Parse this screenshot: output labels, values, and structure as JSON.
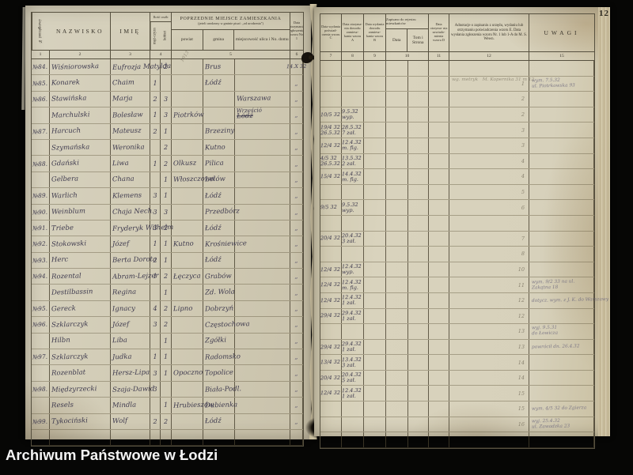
{
  "page_number": "12",
  "archive_label": "Archiwum Państwowe w Łodzi",
  "colors": {
    "paper": "#d4ceb8",
    "ink": "#3e3a4e",
    "pencil": "#837c6a",
    "table_line": "#56503f",
    "background": "#060605"
  },
  "left_table": {
    "headers": {
      "nr": "№ porządkowy",
      "nazwisko": "NAZWISKO",
      "imie": "IMIĘ",
      "ilosc": "Ilość osób",
      "mezczyzn": "męż-czyzn",
      "kobiet": "kobiet",
      "poprzednie_title": "POPRZEDNIE MIEJSCE ZAMIESZKANIA",
      "poprzednie_sub": "(jeżeli urodzony w gminie pisać: „od urodzenia”)",
      "powiat": "powiat",
      "gmina": "gmina",
      "miejscowosc": "miejscowość ulica i No. domu",
      "data_otrzymania": "Data otrzymania zgłoszenia wzoru No. 1",
      "numbers": [
        "1",
        "2",
        "3",
        "4",
        "5",
        "6"
      ]
    },
    "header_pencil": "1913",
    "rows": [
      {
        "no": "№84.",
        "naz": "Wiśniorowska",
        "im": "Eufrozja Matylda",
        "m": "",
        "k": "2",
        "pow": "",
        "gm": "Brus",
        "mj": "",
        "mj2": "",
        "strike": false,
        "dt": "14.X 32"
      },
      {
        "no": "№85.",
        "naz": "Konarek",
        "im": "Chaim",
        "m": "1",
        "k": "",
        "pow": "",
        "gm": "Łódź",
        "mj": "",
        "mj2": "",
        "strike": false,
        "dt": "„"
      },
      {
        "no": "№86.",
        "naz": "Stawińska",
        "im": "Marja",
        "m": "2",
        "k": "3",
        "pow": "",
        "gm": "",
        "mj": "Warszawa",
        "mj2": "",
        "strike": false,
        "dt": "„"
      },
      {
        "no": "",
        "naz": "Marchulski",
        "im": "Bolesław",
        "m": "1",
        "k": "3",
        "pow": "Piotrków",
        "gm": "",
        "mj": "Łódź",
        "mj2": "Wrześció",
        "strike": true,
        "dt": "„"
      },
      {
        "no": "№87.",
        "naz": "Harcuch",
        "im": "Mateusz",
        "m": "2",
        "k": "1",
        "pow": "",
        "gm": "Brzeziny",
        "mj": "",
        "mj2": "",
        "strike": false,
        "dt": "„"
      },
      {
        "no": "",
        "naz": "Szymańska",
        "im": "Weronika",
        "m": "",
        "k": "2",
        "pow": "",
        "gm": "Kutno",
        "mj": "",
        "mj2": "",
        "strike": false,
        "dt": "„"
      },
      {
        "no": "№88.",
        "naz": "Gdański",
        "im": "Liwa",
        "m": "1",
        "k": "2",
        "pow": "Olkusz",
        "gm": "Pilica",
        "mj": "",
        "mj2": "",
        "strike": false,
        "dt": "„"
      },
      {
        "no": "",
        "naz": "Gelbera",
        "im": "Chana",
        "m": "",
        "k": "1",
        "pow": "Włoszczowa",
        "gm": "Lelów",
        "mj": "",
        "mj2": "",
        "strike": false,
        "dt": "„"
      },
      {
        "no": "№89.",
        "naz": "Warlich",
        "im": "Klemens",
        "m": "3",
        "k": "1",
        "pow": "",
        "gm": "Łódź",
        "mj": "",
        "mj2": "",
        "strike": false,
        "dt": "„"
      },
      {
        "no": "№90.",
        "naz": "Weinblum",
        "im": "Chaja Nech.",
        "m": "3",
        "k": "3",
        "pow": "",
        "gm": "Przedbórz",
        "mj": "",
        "mj2": "",
        "strike": false,
        "dt": "„"
      },
      {
        "no": "№91.",
        "naz": "Triebe",
        "im": "Fryderyk Wilhelm",
        "m": "3",
        "k": "2",
        "pow": "",
        "gm": "Łódź",
        "mj": "",
        "mj2": "",
        "strike": false,
        "dt": "„"
      },
      {
        "no": "№92.",
        "naz": "Stokowski",
        "im": "Józef",
        "m": "1",
        "k": "1",
        "pow": "Kutno",
        "gm": "Krośniewice",
        "mj": "",
        "mj2": "",
        "strike": false,
        "dt": "„"
      },
      {
        "no": "№93.",
        "naz": "Herc",
        "im": "Berta Dorota",
        "m": "2",
        "k": "1",
        "pow": "",
        "gm": "Łódź",
        "mj": "",
        "mj2": "",
        "strike": false,
        "dt": "„"
      },
      {
        "no": "№94.",
        "naz": "Rozental",
        "im": "Abram-Lejzer",
        "m": "1",
        "k": "2",
        "pow": "Łęczyca",
        "gm": "Grabów",
        "mj": "",
        "mj2": "",
        "strike": false,
        "dt": "„"
      },
      {
        "no": "",
        "naz": "Destilbassin",
        "im": "Regina",
        "m": "",
        "k": "1",
        "pow": "",
        "gm": "Zd. Wola",
        "mj": "",
        "mj2": "",
        "strike": false,
        "dt": "„"
      },
      {
        "no": "№95.",
        "naz": "Gereck",
        "im": "Ignacy",
        "m": "4",
        "k": "2",
        "pow": "Lipno",
        "gm": "Dobrzyń",
        "mj": "",
        "mj2": "",
        "strike": false,
        "dt": "„"
      },
      {
        "no": "№96.",
        "naz": "Szklarczyk",
        "im": "Józef",
        "m": "3",
        "k": "2",
        "pow": "",
        "gm": "Częstochowa",
        "mj": "",
        "mj2": "",
        "strike": false,
        "dt": "„"
      },
      {
        "no": "",
        "naz": "Hilbn",
        "im": "Liba",
        "m": "",
        "k": "1",
        "pow": "",
        "gm": "Zgółki",
        "mj": "",
        "mj2": "",
        "strike": false,
        "dt": "„"
      },
      {
        "no": "№97.",
        "naz": "Szklarczyk",
        "im": "Judka",
        "m": "1",
        "k": "1",
        "pow": "",
        "gm": "Radomsko",
        "mj": "",
        "mj2": "",
        "strike": false,
        "dt": "„"
      },
      {
        "no": "",
        "naz": "Rozenblat",
        "im": "Hersz-Lipa",
        "m": "3",
        "k": "1",
        "pow": "Opoczno",
        "gm": "Topolice",
        "mj": "",
        "mj2": "",
        "strike": false,
        "dt": "„"
      },
      {
        "no": "№98.",
        "naz": "Międzyrzecki",
        "im": "Szaja-Dawid",
        "m": "3",
        "k": "",
        "pow": "",
        "gm": "Biała-Podl.",
        "mj": "",
        "mj2": "",
        "strike": false,
        "dt": "„"
      },
      {
        "no": "",
        "naz": "Resels",
        "im": "Mindla",
        "m": "",
        "k": "1",
        "pow": "Hrubieszów",
        "gm": "Dubienka",
        "mj": "",
        "mj2": "",
        "strike": false,
        "dt": "„"
      },
      {
        "no": "№99.",
        "naz": "Tykociński",
        "im": "Wolf",
        "m": "2",
        "k": "2",
        "pow": "",
        "gm": "Łódź",
        "mj": "",
        "mj2": "",
        "strike": false,
        "dt": "„"
      },
      {
        "no": "",
        "naz": "",
        "im": "",
        "m": "",
        "k": "",
        "pow": "",
        "gm": "",
        "mj": "",
        "mj2": "",
        "strike": false,
        "dt": ""
      }
    ]
  },
  "right_table": {
    "headers": {
      "c7": "Data wydania poświad- czenia wzoru C",
      "c8": "Data otrzyma- nia dowodu zamiesz- kania wzoru A",
      "c9": "Data wydania dowodu zamiesz- kania wzoru B",
      "c10": "Zapisano do rejestru mieszkańców",
      "c10a": "Data",
      "c10b": "Tom i Strona",
      "c11": "Data otrzyma- nia zawiado- mienia wzoru D",
      "c12": "Adnotacje o zapisaniu z urzędu, wydaniu lub otrzymaniu poświadczenia wzoru E. Data wysłania zgłoszenia wzoru Nr. 1 lub 1-A do M. S. Wewn.",
      "c15": "UWAGI",
      "numbers": [
        "7",
        "8",
        "9",
        "10",
        "11",
        "12",
        "15"
      ]
    },
    "pencil_note_top": "wg. metryk",
    "pencil_note_top2": "M. Kopernika 31 m 12",
    "rows": [
      {
        "a": "",
        "a2": "",
        "b": "",
        "b2": "",
        "p": "",
        "uw": []
      },
      {
        "a": "",
        "a2": "",
        "b": "",
        "b2": "",
        "p": "1",
        "uw": [
          "wym. 7.5.32",
          "ul. Piotrkowska 93"
        ]
      },
      {
        "a": "",
        "a2": "",
        "b": "",
        "b2": "",
        "p": "2",
        "uw": []
      },
      {
        "a": "10/5 32",
        "a2": "",
        "b": "9.5.32",
        "b2": "wyp.",
        "p": "2",
        "uw": []
      },
      {
        "a": "19/4 32",
        "a2": "26.5.32",
        "b": "28.5.32",
        "b2": "7 zał.",
        "p": "3",
        "uw": []
      },
      {
        "a": "12/4 32",
        "a2": "",
        "b": "12.4.32",
        "b2": "m. fig.",
        "p": "3",
        "uw": []
      },
      {
        "a": "4/5 32",
        "a2": "26.5.32",
        "b": "13.5.32",
        "b2": "2 zał.",
        "p": "4",
        "uw": []
      },
      {
        "a": "15/4 32",
        "a2": "",
        "b": "14.4.32",
        "b2": "m. fig.",
        "p": "4",
        "uw": []
      },
      {
        "a": "",
        "a2": "",
        "b": "",
        "b2": "",
        "p": "5",
        "uw": []
      },
      {
        "a": "9/5 32",
        "a2": "",
        "b": "9.5.32",
        "b2": "wyp.",
        "p": "6",
        "uw": []
      },
      {
        "a": "",
        "a2": "",
        "b": "",
        "b2": "",
        "p": "",
        "uw": []
      },
      {
        "a": "20/4 32",
        "a2": "",
        "b": "20.4.32",
        "b2": "3 zał.",
        "p": "7",
        "uw": []
      },
      {
        "a": "",
        "a2": "",
        "b": "",
        "b2": "",
        "p": "8",
        "uw": []
      },
      {
        "a": "12/4 32",
        "a2": "",
        "b": "12.4.32",
        "b2": "wyp.",
        "p": "10",
        "uw": []
      },
      {
        "a": "12/4 32",
        "a2": "",
        "b": "12.4.32",
        "b2": "m. fig.",
        "p": "11",
        "uw": [
          "wym. 9/2 33 na ul.",
          "Zakątna 18"
        ]
      },
      {
        "a": "12/4 32",
        "a2": "",
        "b": "12.4.32",
        "b2": "1 zał.",
        "p": "12",
        "uw": [
          "dotycz. wym. z J. K. do Warszawy"
        ]
      },
      {
        "a": "29/4 32",
        "a2": "",
        "b": "29.4.32",
        "b2": "1 zał.",
        "p": "12",
        "uw": []
      },
      {
        "a": "",
        "a2": "",
        "b": "",
        "b2": "",
        "p": "13",
        "uw": [
          "wyj. 9.5.31",
          "do Łowicza"
        ]
      },
      {
        "a": "29/4 32",
        "a2": "",
        "b": "29.4.32",
        "b2": "1 zał.",
        "p": "13",
        "uw": [
          "powrócił dn. 26.4.32"
        ]
      },
      {
        "a": "13/4 32",
        "a2": "",
        "b": "13.4.32",
        "b2": "3 zał.",
        "p": "14",
        "uw": []
      },
      {
        "a": "20/4 32",
        "a2": "",
        "b": "20.4.32",
        "b2": "5 zał.",
        "p": "14",
        "uw": []
      },
      {
        "a": "12/4 32",
        "a2": "",
        "b": "12.4.32",
        "b2": "1 zał.",
        "p": "15",
        "uw": []
      },
      {
        "a": "",
        "a2": "",
        "b": "",
        "b2": "",
        "p": "15",
        "uw": [
          "wym. 4/5 32 do Zgierza"
        ]
      },
      {
        "a": "",
        "a2": "",
        "b": "",
        "b2": "",
        "p": "16",
        "uw": [
          "wyj. 25.4.32",
          "ul. Zawadzka 23"
        ]
      },
      {
        "a": "",
        "a2": "",
        "b": "",
        "b2": "",
        "p": "",
        "uw": []
      }
    ]
  }
}
